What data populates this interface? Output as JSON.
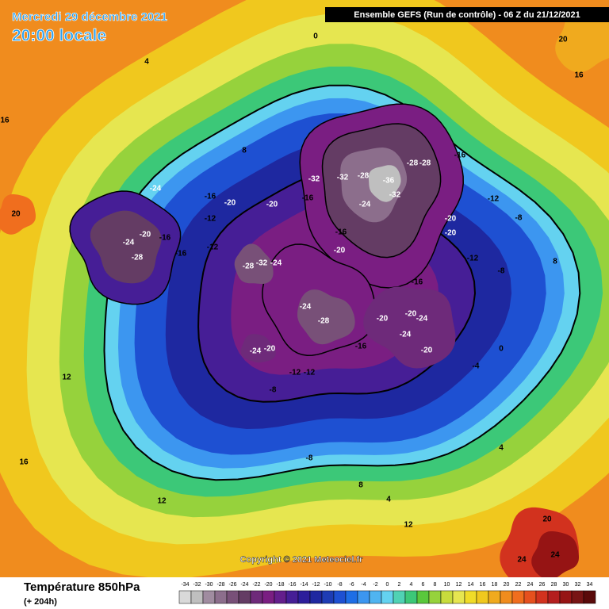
{
  "header": {
    "date": "Mercredi 29 décembre 2021",
    "time": "20:00 locale",
    "run": "Ensemble GEFS  (Run de contrôle)  -  06 Z du 21/12/2021"
  },
  "copyright": "Copyright © 2021 Meteociel.fr",
  "legend": {
    "title": "Température 850hPa",
    "subtitle": "(+ 204h)",
    "ticks": [
      -34,
      -32,
      -30,
      -28,
      -26,
      -24,
      -22,
      -20,
      -18,
      -16,
      -14,
      -12,
      -10,
      -8,
      -6,
      -4,
      -2,
      0,
      2,
      4,
      6,
      8,
      10,
      12,
      14,
      16,
      18,
      20,
      22,
      24,
      26,
      28,
      30,
      32,
      34
    ],
    "colors": [
      "#d9d9d9",
      "#bfbfbf",
      "#a08ca0",
      "#8c6e8c",
      "#785078",
      "#643c64",
      "#6e2a7a",
      "#7a1e82",
      "#641e8c",
      "#461e96",
      "#2d1e9b",
      "#1e28a0",
      "#1e3cb4",
      "#1e50d2",
      "#1e6ee6",
      "#3c96f0",
      "#50b4f0",
      "#64d2f0",
      "#50d2b4",
      "#3cc878",
      "#5ac83c",
      "#96d23c",
      "#c8dc3c",
      "#e6e650",
      "#f0dc28",
      "#f0c81e",
      "#f0aa1e",
      "#f08c1e",
      "#f06e1e",
      "#e6501e",
      "#d2321e",
      "#b41e1e",
      "#961414",
      "#781414",
      "#5a0a0a"
    ]
  },
  "map": {
    "labels": [
      -24,
      -28,
      -20,
      -16,
      -16,
      -12,
      -20,
      -12,
      -16,
      -24,
      -20,
      -16,
      -32,
      -32,
      -28,
      -36,
      -28,
      -28,
      -32,
      -24,
      -16,
      -20,
      -28,
      -32,
      -24,
      -24,
      -28,
      -16,
      -20,
      -20,
      -24,
      -24,
      -20,
      -16,
      -20,
      -20,
      -16,
      -12,
      -8,
      -12,
      -8,
      -12,
      -12,
      -8,
      -8,
      -24,
      -20,
      0,
      4,
      8,
      12,
      16,
      20,
      20,
      16,
      12,
      16,
      24,
      24,
      20,
      12,
      8,
      4,
      0,
      -4,
      4,
      8
    ]
  }
}
